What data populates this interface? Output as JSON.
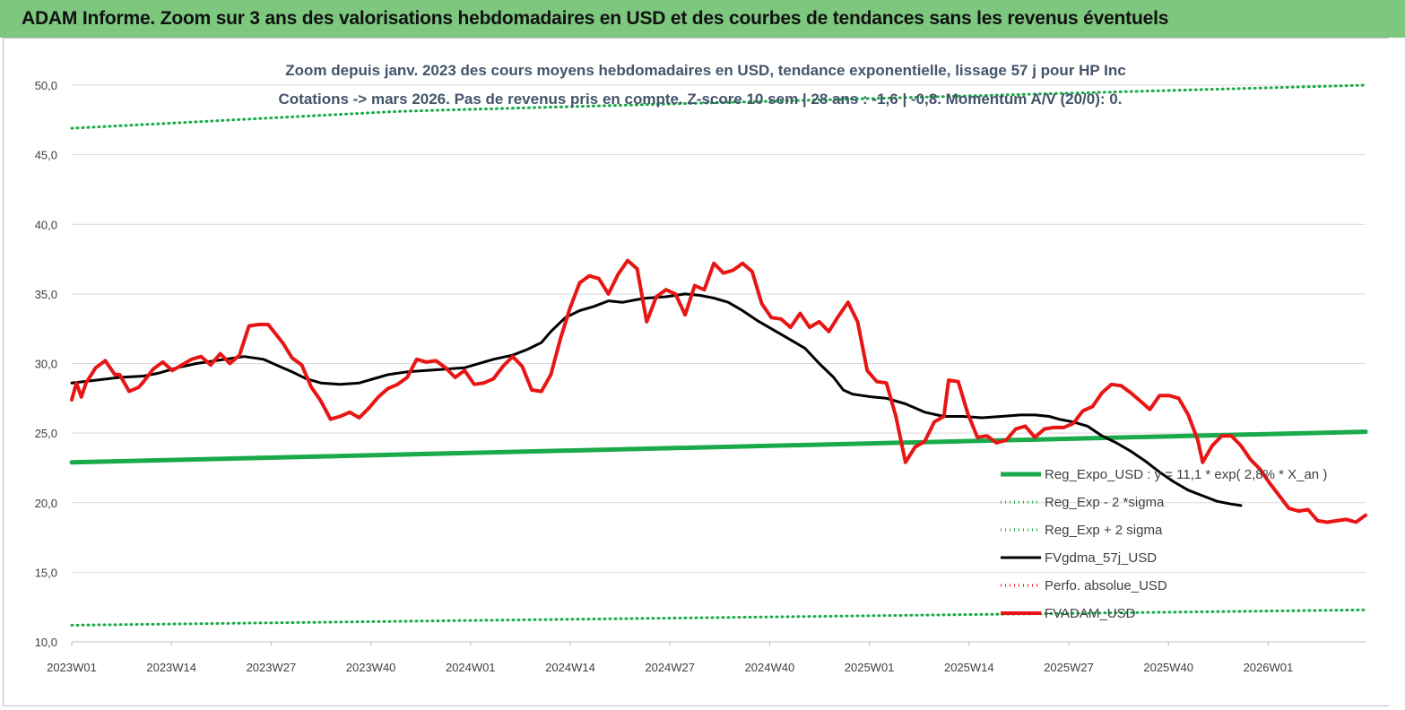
{
  "header": {
    "title": "ADAM Informe. Zoom sur 3 ans des valorisations hebdomadaires en USD et des courbes de tendances sans les revenus éventuels"
  },
  "colors": {
    "header_bg": "#7dc77f",
    "green": "#1aaa4a",
    "black": "#000000",
    "red": "#e81515",
    "dotted_green": "#1aaa4a",
    "dotted_red": "#e81515"
  },
  "chart_data": {
    "type": "line",
    "title": "Zoom depuis janv. 2023 des cours moyens hebdomadaires en USD, tendance exponentielle, lissage 57 j pour HP Inc",
    "subtitle": "Cotations -> mars 2026. Pas de revenus pris en compte. Z-score 10 sem | 28 ans : -1,6 | -0,8. Momentum A/V (20/0): 0.",
    "xlabel": "",
    "ylabel": "",
    "ylim": [
      10,
      50
    ],
    "yticks": [
      "10,0",
      "15,0",
      "20,0",
      "25,0",
      "30,0",
      "35,0",
      "40,0",
      "45,0",
      "50,0"
    ],
    "xticks": [
      "2023W01",
      "2023W14",
      "2023W27",
      "2023W40",
      "2024W01",
      "2024W14",
      "2024W27",
      "2024W40",
      "2025W01",
      "2025W14",
      "2025W27",
      "2025W40",
      "2026W01"
    ],
    "weeks_total": 170,
    "grid": "horizontal",
    "legend_position": "bottom-right",
    "series": [
      {
        "name": "Reg_Expo_USD : y = 11,1 * exp( 2,8% *  X_an )",
        "style": "solid",
        "color": "#1aaa4a",
        "points": [
          [
            0,
            22.9
          ],
          [
            169,
            25.1
          ]
        ]
      },
      {
        "name": "Reg_Exp - 2 *sigma",
        "style": "dotted",
        "color": "#1aaa4a",
        "points": [
          [
            0,
            11.2
          ],
          [
            169,
            12.3
          ]
        ]
      },
      {
        "name": "Reg_Exp + 2 sigma",
        "style": "dotted",
        "color": "#1aaa4a",
        "points": [
          [
            0,
            46.9
          ],
          [
            7,
            47.1
          ],
          [
            14,
            47.3
          ],
          [
            21,
            47.5
          ],
          [
            28,
            47.7
          ],
          [
            35,
            47.9
          ],
          [
            42,
            48.1
          ],
          [
            48,
            48.2
          ],
          [
            169,
            50.0
          ]
        ]
      },
      {
        "name": "FVgdma_57j_USD",
        "style": "solid",
        "color": "#000000",
        "points": [
          [
            0,
            28.6
          ],
          [
            5,
            28.8
          ],
          [
            10,
            29.0
          ],
          [
            15,
            29.1
          ],
          [
            18,
            29.3
          ],
          [
            22,
            29.7
          ],
          [
            26,
            30.0
          ],
          [
            30,
            30.2
          ],
          [
            32,
            30.3
          ],
          [
            36,
            30.5
          ],
          [
            40,
            30.3
          ],
          [
            44,
            29.7
          ],
          [
            46,
            29.4
          ],
          [
            49,
            28.9
          ],
          [
            52,
            28.6
          ],
          [
            56,
            28.5
          ],
          [
            60,
            28.6
          ],
          [
            64,
            29.0
          ],
          [
            66,
            29.2
          ],
          [
            70,
            29.4
          ],
          [
            74,
            29.5
          ],
          [
            78,
            29.6
          ],
          [
            82,
            29.7
          ],
          [
            86,
            30.1
          ],
          [
            88,
            30.3
          ],
          [
            92,
            30.6
          ],
          [
            95,
            31.0
          ],
          [
            98,
            31.5
          ],
          [
            100,
            32.3
          ],
          [
            103,
            33.3
          ],
          [
            106,
            33.8
          ],
          [
            109,
            34.1
          ],
          [
            112,
            34.5
          ],
          [
            115,
            34.4
          ],
          [
            118,
            34.6
          ],
          [
            120,
            34.7
          ],
          [
            124,
            34.8
          ],
          [
            128,
            35.0
          ],
          [
            131,
            34.9
          ],
          [
            134,
            34.7
          ],
          [
            137,
            34.4
          ],
          [
            140,
            33.8
          ],
          [
            143,
            33.1
          ],
          [
            146,
            32.5
          ],
          [
            150,
            31.7
          ],
          [
            153,
            31.1
          ],
          [
            156,
            30.0
          ],
          [
            159,
            29.0
          ],
          [
            161,
            28.1
          ],
          [
            163,
            27.8
          ],
          [
            167,
            27.6
          ],
          [
            170,
            27.5
          ],
          [
            174,
            27.1
          ],
          [
            178,
            26.5
          ],
          [
            182,
            26.2
          ],
          [
            186,
            26.2
          ],
          [
            190,
            26.1
          ],
          [
            194,
            26.2
          ],
          [
            198,
            26.3
          ],
          [
            201,
            26.3
          ],
          [
            204,
            26.2
          ],
          [
            206,
            26.0
          ],
          [
            209,
            25.8
          ],
          [
            212,
            25.5
          ],
          [
            215,
            24.8
          ],
          [
            218,
            24.3
          ],
          [
            221,
            23.7
          ],
          [
            224,
            23.0
          ],
          [
            227,
            22.2
          ],
          [
            230,
            21.5
          ],
          [
            233,
            20.9
          ],
          [
            236,
            20.5
          ],
          [
            239,
            20.1
          ],
          [
            242,
            19.9
          ],
          [
            244,
            19.8
          ]
        ]
      },
      {
        "name": "Perfo. absolue_USD",
        "style": "dotted",
        "color": "#e81515",
        "points": []
      },
      {
        "name": "FVADAM_USD",
        "style": "solid",
        "color": "#e81515",
        "points": [
          [
            0,
            27.4
          ],
          [
            1,
            28.6
          ],
          [
            2,
            27.6
          ],
          [
            3,
            28.6
          ],
          [
            5,
            29.7
          ],
          [
            7,
            30.2
          ],
          [
            9,
            29.2
          ],
          [
            10,
            29.2
          ],
          [
            12,
            28.0
          ],
          [
            14,
            28.3
          ],
          [
            15,
            28.7
          ],
          [
            17,
            29.6
          ],
          [
            19,
            30.1
          ],
          [
            21,
            29.5
          ],
          [
            23,
            29.9
          ],
          [
            25,
            30.3
          ],
          [
            27,
            30.5
          ],
          [
            29,
            29.9
          ],
          [
            31,
            30.7
          ],
          [
            33,
            30.0
          ],
          [
            35,
            30.6
          ],
          [
            37,
            32.7
          ],
          [
            39,
            32.8
          ],
          [
            41,
            32.8
          ],
          [
            44,
            31.5
          ],
          [
            46,
            30.4
          ],
          [
            48,
            29.9
          ],
          [
            50,
            28.3
          ],
          [
            52,
            27.3
          ],
          [
            54,
            26.0
          ],
          [
            56,
            26.2
          ],
          [
            58,
            26.5
          ],
          [
            60,
            26.1
          ],
          [
            62,
            26.8
          ],
          [
            64,
            27.6
          ],
          [
            66,
            28.2
          ],
          [
            68,
            28.5
          ],
          [
            70,
            29.0
          ],
          [
            72,
            30.3
          ],
          [
            74,
            30.1
          ],
          [
            76,
            30.2
          ],
          [
            78,
            29.7
          ],
          [
            80,
            29.0
          ],
          [
            82,
            29.5
          ],
          [
            84,
            28.5
          ],
          [
            86,
            28.6
          ],
          [
            88,
            28.9
          ],
          [
            90,
            29.8
          ],
          [
            92,
            30.5
          ],
          [
            94,
            29.8
          ],
          [
            96,
            28.1
          ],
          [
            98,
            28.0
          ],
          [
            100,
            29.2
          ],
          [
            102,
            31.8
          ],
          [
            104,
            34.0
          ],
          [
            106,
            35.8
          ],
          [
            108,
            36.3
          ],
          [
            110,
            36.1
          ],
          [
            112,
            35.0
          ],
          [
            114,
            36.4
          ],
          [
            116,
            37.4
          ],
          [
            118,
            36.8
          ],
          [
            120,
            33.0
          ],
          [
            122,
            34.8
          ],
          [
            124,
            35.3
          ],
          [
            126,
            35.0
          ],
          [
            128,
            33.5
          ],
          [
            130,
            35.6
          ],
          [
            132,
            35.3
          ],
          [
            134,
            37.2
          ],
          [
            136,
            36.5
          ],
          [
            138,
            36.7
          ],
          [
            140,
            37.2
          ],
          [
            142,
            36.6
          ],
          [
            144,
            34.3
          ],
          [
            146,
            33.3
          ],
          [
            148,
            33.2
          ],
          [
            150,
            32.6
          ],
          [
            152,
            33.6
          ],
          [
            154,
            32.6
          ],
          [
            156,
            33.0
          ],
          [
            158,
            32.3
          ],
          [
            160,
            33.4
          ],
          [
            162,
            34.4
          ],
          [
            164,
            33.0
          ],
          [
            166,
            29.5
          ],
          [
            168,
            28.7
          ],
          [
            170,
            28.6
          ],
          [
            172,
            26.2
          ],
          [
            174,
            22.9
          ],
          [
            176,
            24.0
          ],
          [
            178,
            24.4
          ],
          [
            180,
            25.8
          ],
          [
            182,
            26.2
          ],
          [
            183,
            28.8
          ],
          [
            185,
            28.7
          ],
          [
            187,
            26.4
          ],
          [
            189,
            24.7
          ],
          [
            191,
            24.8
          ],
          [
            193,
            24.3
          ],
          [
            195,
            24.5
          ],
          [
            197,
            25.3
          ],
          [
            199,
            25.5
          ],
          [
            201,
            24.7
          ],
          [
            203,
            25.3
          ],
          [
            205,
            25.4
          ],
          [
            207,
            25.4
          ],
          [
            209,
            25.7
          ],
          [
            211,
            26.6
          ],
          [
            213,
            26.9
          ],
          [
            215,
            27.9
          ],
          [
            217,
            28.5
          ],
          [
            219,
            28.4
          ],
          [
            221,
            27.9
          ],
          [
            223,
            27.3
          ],
          [
            225,
            26.7
          ],
          [
            227,
            27.7
          ],
          [
            229,
            27.7
          ],
          [
            231,
            27.5
          ],
          [
            233,
            26.3
          ],
          [
            235,
            24.5
          ],
          [
            236,
            22.9
          ],
          [
            238,
            24.1
          ],
          [
            240,
            24.8
          ],
          [
            242,
            24.8
          ],
          [
            244,
            24.1
          ],
          [
            246,
            23.1
          ],
          [
            248,
            22.4
          ],
          [
            250,
            21.4
          ],
          [
            252,
            20.5
          ],
          [
            254,
            19.6
          ],
          [
            256,
            19.4
          ],
          [
            258,
            19.5
          ],
          [
            260,
            18.7
          ],
          [
            262,
            18.6
          ],
          [
            264,
            18.7
          ],
          [
            266,
            18.8
          ],
          [
            268,
            18.6
          ],
          [
            270,
            19.1
          ]
        ]
      }
    ]
  }
}
